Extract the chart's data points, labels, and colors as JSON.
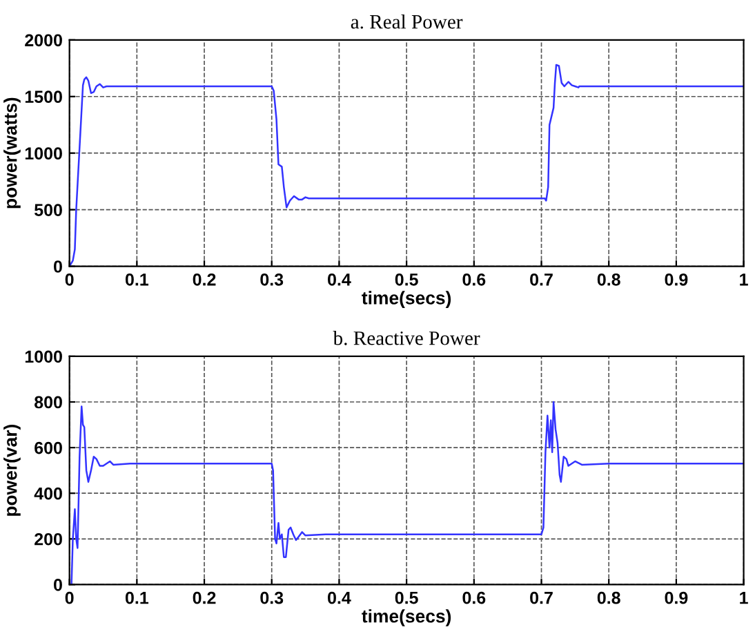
{
  "chart_data": [
    {
      "type": "line",
      "title": "a. Real Power",
      "xlabel": "time(secs)",
      "ylabel": "power(watts)",
      "xlim": [
        0,
        1
      ],
      "ylim": [
        0,
        2000
      ],
      "xticks": [
        0,
        0.1,
        0.2,
        0.3,
        0.4,
        0.5,
        0.6,
        0.7,
        0.8,
        0.9,
        1
      ],
      "yticks": [
        0,
        500,
        1000,
        1500,
        2000
      ],
      "grid": true,
      "legend": false,
      "series": [
        {
          "color": "#3333ff",
          "x": [
            0,
            0.005,
            0.008,
            0.01,
            0.015,
            0.02,
            0.022,
            0.025,
            0.028,
            0.032,
            0.036,
            0.04,
            0.045,
            0.05,
            0.055,
            0.3,
            0.303,
            0.307,
            0.31,
            0.315,
            0.318,
            0.322,
            0.327,
            0.333,
            0.34,
            0.345,
            0.35,
            0.355,
            0.705,
            0.707,
            0.71,
            0.712,
            0.716,
            0.718,
            0.72,
            0.722,
            0.726,
            0.73,
            0.734,
            0.74,
            0.745,
            0.75,
            0.755,
            0.756,
            1
          ],
          "values": [
            0,
            50,
            150,
            500,
            1050,
            1600,
            1650,
            1670,
            1640,
            1530,
            1540,
            1590,
            1610,
            1580,
            1590,
            1590,
            1550,
            1300,
            900,
            880,
            700,
            520,
            580,
            620,
            590,
            590,
            610,
            600,
            600,
            580,
            700,
            1250,
            1350,
            1400,
            1620,
            1780,
            1770,
            1620,
            1590,
            1630,
            1600,
            1590,
            1580,
            1590,
            1590
          ]
        }
      ]
    },
    {
      "type": "line",
      "title": "b. Reactive Power",
      "xlabel": "time(secs)",
      "ylabel": "power(var)",
      "xlim": [
        0,
        1
      ],
      "ylim": [
        0,
        1000
      ],
      "xticks": [
        0,
        0.1,
        0.2,
        0.3,
        0.4,
        0.5,
        0.6,
        0.7,
        0.8,
        0.9,
        1
      ],
      "yticks": [
        0,
        200,
        400,
        600,
        800,
        1000
      ],
      "grid": true,
      "legend": false,
      "series": [
        {
          "color": "#3333ff",
          "x": [
            0,
            0.003,
            0.005,
            0.008,
            0.01,
            0.012,
            0.015,
            0.018,
            0.02,
            0.022,
            0.025,
            0.028,
            0.032,
            0.036,
            0.04,
            0.045,
            0.05,
            0.055,
            0.06,
            0.065,
            0.09,
            0.1,
            0.3,
            0.302,
            0.305,
            0.307,
            0.31,
            0.312,
            0.315,
            0.318,
            0.321,
            0.325,
            0.328,
            0.332,
            0.336,
            0.34,
            0.345,
            0.35,
            0.38,
            0.7,
            0.703,
            0.706,
            0.709,
            0.712,
            0.714,
            0.716,
            0.718,
            0.721,
            0.724,
            0.727,
            0.729,
            0.733,
            0.737,
            0.74,
            0.745,
            0.75,
            0.76,
            0.8,
            1
          ],
          "values": [
            0,
            0,
            200,
            330,
            200,
            160,
            560,
            780,
            700,
            690,
            500,
            450,
            500,
            560,
            550,
            520,
            520,
            530,
            540,
            525,
            530,
            530,
            530,
            500,
            200,
            180,
            270,
            200,
            220,
            120,
            120,
            240,
            250,
            220,
            195,
            210,
            230,
            215,
            220,
            220,
            250,
            580,
            740,
            600,
            720,
            580,
            800,
            680,
            620,
            480,
            450,
            560,
            550,
            520,
            530,
            540,
            525,
            530,
            530
          ]
        }
      ]
    }
  ]
}
